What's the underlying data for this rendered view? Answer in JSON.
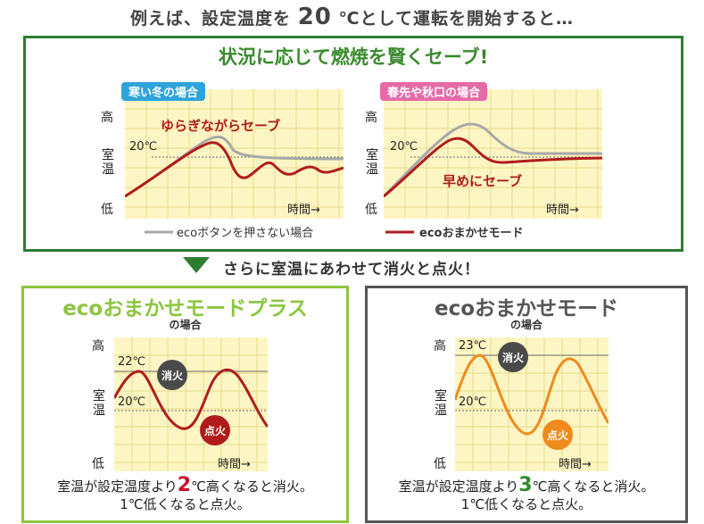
{
  "headline": {
    "prefix": "例えば、設定温度を",
    "value": "20",
    "suffix": "℃として運転を開始すると…"
  },
  "top": {
    "title": "状況に応じて燃焼を賢くセーブ!",
    "winter": {
      "tag": "寒い冬の場合",
      "annotation": "ゆらぎながらセーブ",
      "temp_label": "20℃",
      "axis": {
        "high": "高",
        "room_1": "室",
        "room_2": "温",
        "low": "低",
        "time": "時間→"
      }
    },
    "spring": {
      "tag": "春先や秋口の場合",
      "annotation": "早めにセーブ",
      "temp_label": "20℃",
      "axis": {
        "high": "高",
        "room_1": "室",
        "room_2": "温",
        "low": "低",
        "time": "時間→"
      }
    },
    "legend": {
      "gray": "ecoボタンを押さない場合",
      "red": "ecoおまかせモード"
    },
    "colors": {
      "gray": "#a8a8a8",
      "red": "#b01c1c",
      "grid_bg": "#fdf6c4"
    }
  },
  "middle": {
    "text": "さらに室温にあわせて消火と点火！"
  },
  "left_panel": {
    "title_eco": "eco",
    "title_rest": "おまかせモードプラス",
    "subtitle": "の場合",
    "axis": {
      "high": "高",
      "room_1": "室",
      "room_2": "温",
      "low": "低",
      "time": "時間→"
    },
    "upper_temp": "22℃",
    "lower_temp": "20℃",
    "off_badge": "消火",
    "on_badge": "点火",
    "footer": {
      "prefix": "室温が設定温度より",
      "num": "2",
      "suffix": "℃高くなると消火。",
      "line2": "1℃低くなると点火。"
    }
  },
  "right_panel": {
    "title_eco": "eco",
    "title_rest": "おまかせモード",
    "subtitle": "の場合",
    "axis": {
      "high": "高",
      "room_1": "室",
      "room_2": "温",
      "low": "低",
      "time": "時間→"
    },
    "upper_temp": "23℃",
    "lower_temp": "20℃",
    "off_badge": "消火",
    "on_badge": "点火",
    "footer": {
      "prefix": "室温が設定温度より",
      "num": "3",
      "suffix": "℃高くなると消火。",
      "line2": "1℃低くなると点火。"
    }
  }
}
